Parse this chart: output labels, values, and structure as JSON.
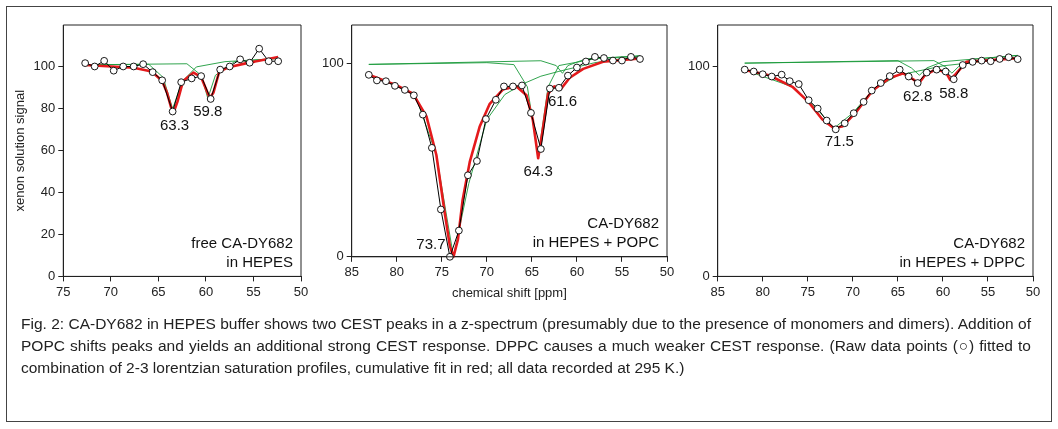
{
  "chart_data": [
    {
      "type": "line",
      "ylabel": "xenon solution signal",
      "xlim": [
        75,
        50
      ],
      "xticks": [
        75,
        70,
        65,
        60,
        55,
        50
      ],
      "ylim": [
        0,
        120
      ],
      "yticks": [
        0,
        20,
        40,
        60,
        80,
        100
      ],
      "series": [
        {
          "color": "#000000",
          "marker": "circle",
          "x": [
            72.7,
            71.7,
            70.7,
            69.7,
            68.7,
            67.6,
            66.6,
            65.6,
            64.6,
            63.5,
            62.6,
            61.5,
            60.5,
            59.5,
            58.5,
            57.5,
            56.4,
            55.4,
            54.4,
            53.4,
            52.4
          ],
          "values": [
            101.8,
            100.2,
            102.9,
            98.2,
            100.2,
            100.2,
            101.3,
            97.5,
            93.6,
            78.7,
            92.7,
            94.5,
            95.6,
            84.7,
            98.7,
            100.2,
            103.6,
            102,
            108.7,
            102.7,
            102.7
          ]
        },
        {
          "color": "#e41a1c",
          "marker": "none",
          "x": [
            72.7,
            67.6,
            65.7,
            64.6,
            64.1,
            63.6,
            63.4,
            63,
            62.4,
            61.3,
            60.5,
            60,
            59.6,
            59.2,
            58.6,
            57.5,
            55.7,
            52.4
          ],
          "values": [
            100.9,
            99.6,
            97.8,
            93.3,
            87.8,
            79.6,
            78.2,
            83.3,
            93.3,
            97.3,
            95.1,
            89.6,
            85.1,
            87.8,
            97.8,
            100,
            101.8,
            104.7
          ]
        },
        {
          "color": "#1a9a3a",
          "marker": "none",
          "x": [
            72.7,
            66,
            64.5,
            63.5,
            62.5,
            61,
            58,
            52.5
          ],
          "values": [
            101,
            101.2,
            95,
            80,
            93,
            100,
            102.5,
            104
          ]
        },
        {
          "color": "#1a9a3a",
          "marker": "none",
          "x": [
            72.7,
            62,
            60.5,
            59.8,
            59,
            57,
            52.5
          ],
          "values": [
            101,
            101.5,
            96,
            85,
            96,
            102.5,
            104
          ]
        }
      ],
      "annotations": [
        {
          "text": "63.3",
          "x": 63.3,
          "y": 78.2
        },
        {
          "text": "59.8",
          "x": 59.8,
          "y": 85.1
        },
        "free CA-DY682\nin HEPES"
      ]
    },
    {
      "type": "line",
      "xlabel": "chemical shift [ppm]",
      "xlim": [
        85,
        50
      ],
      "xticks": [
        85,
        80,
        75,
        70,
        65,
        60,
        55,
        50
      ],
      "ylim": [
        0,
        120
      ],
      "yticks": [
        0,
        100
      ],
      "series": [
        {
          "color": "#000000",
          "marker": "circle",
          "x": [
            83.1,
            82.2,
            81.2,
            80.2,
            79.1,
            78.1,
            77.1,
            76.1,
            75.1,
            74.1,
            73.1,
            72.1,
            71.1,
            70.1,
            69,
            68.1,
            67.1,
            66.1,
            65.1,
            64,
            63,
            62,
            61,
            60,
            59,
            58,
            57,
            56,
            55,
            54,
            53
          ],
          "values": [
            94.2,
            91.3,
            90.9,
            88.5,
            86.4,
            83.6,
            73.6,
            56.4,
            24.5,
            0,
            13.6,
            42.2,
            49.6,
            71.3,
            81.3,
            88.2,
            88.2,
            88.7,
            74.5,
            55.8,
            87.1,
            87.5,
            93.8,
            98,
            101.1,
            103.5,
            102.9,
            101.6,
            101.6,
            103.5,
            102.4
          ]
        },
        {
          "color": "#e41a1c",
          "marker": "none",
          "x": [
            83.1,
            80.1,
            78.2,
            76.7,
            75.6,
            74.7,
            74.1,
            73.7,
            73.2,
            72.7,
            71.9,
            70.8,
            69.7,
            68.2,
            66.7,
            65.6,
            64.9,
            64.3,
            63.8,
            63.2,
            62.5,
            61.7,
            60.8,
            59.3,
            57.1,
            53
          ],
          "values": [
            94.2,
            89,
            84.5,
            72.7,
            52.7,
            23.6,
            5.5,
            0,
            9.1,
            29,
            49,
            67.3,
            79,
            86.7,
            88.2,
            83.6,
            71,
            51,
            65.5,
            84.5,
            88.2,
            87.3,
            92.7,
            97.3,
            101,
            102.7
          ]
        },
        {
          "color": "#1a9a3a",
          "marker": "none",
          "x": [
            83.1,
            78,
            75.6,
            73.7,
            72,
            70,
            68,
            66,
            64,
            62,
            58,
            53
          ],
          "values": [
            94,
            84.5,
            52.7,
            0,
            38,
            71,
            84,
            89.5,
            93.5,
            96,
            100.5,
            104
          ]
        },
        {
          "color": "#1a9a3a",
          "marker": "none",
          "x": [
            83.1,
            70,
            67,
            65.5,
            64.3,
            63.2,
            62,
            58,
            53
          ],
          "values": [
            99.6,
            100.5,
            99.5,
            88,
            52,
            88,
            99,
            102.5,
            104
          ]
        },
        {
          "color": "#1a9a3a",
          "marker": "none",
          "x": [
            83.1,
            64,
            62.3,
            61.6,
            61,
            59,
            53
          ],
          "values": [
            99.6,
            101.5,
            99,
            95,
            99,
            102.5,
            104
          ]
        }
      ],
      "annotations": [
        {
          "text": "73.7",
          "x": 73.7,
          "y": 0
        },
        {
          "text": "64.3",
          "x": 64.3,
          "y": 51
        },
        {
          "text": "61.6",
          "x": 61.6,
          "y": 87.3
        },
        "CA-DY682\nin HEPES + POPC"
      ]
    },
    {
      "type": "line",
      "xlim": [
        85,
        50
      ],
      "xticks": [
        85,
        80,
        75,
        70,
        65,
        60,
        55,
        50
      ],
      "ylim": [
        0,
        120
      ],
      "yticks": [
        0,
        100
      ],
      "series": [
        {
          "color": "#000000",
          "marker": "circle",
          "x": [
            82,
            81,
            80,
            79,
            77.9,
            77,
            76,
            74.9,
            73.9,
            72.9,
            71.9,
            70.9,
            69.9,
            68.8,
            67.9,
            66.9,
            65.9,
            64.8,
            63.8,
            62.8,
            61.8,
            60.7,
            59.7,
            58.8,
            57.8,
            56.7,
            55.7,
            54.7,
            53.7,
            52.7,
            51.7
          ],
          "values": [
            98.7,
            97.8,
            96.5,
            95.4,
            96.3,
            93.2,
            91.8,
            84.1,
            80.1,
            74.4,
            70.2,
            73.1,
            77.9,
            83.3,
            88.7,
            92.3,
            95.6,
            98.7,
            95.4,
            92.3,
            97.3,
            98.7,
            97.8,
            94.1,
            100.9,
            102.4,
            103,
            102.7,
            103.8,
            104.6,
            103.7
          ]
        },
        {
          "color": "#e41a1c",
          "marker": "none",
          "x": [
            82,
            79.3,
            76.7,
            74.9,
            73.4,
            72.1,
            71.1,
            69.6,
            67.8,
            65.9,
            64.4,
            63.3,
            62.7,
            62,
            60.7,
            59.6,
            59.2,
            58.7,
            57.4,
            51.7
          ],
          "values": [
            98.5,
            96,
            90.5,
            83.2,
            75,
            70.7,
            71.7,
            78.6,
            88.7,
            94.7,
            96.9,
            94.1,
            92,
            96,
            99.1,
            96.9,
            93.8,
            96,
            102.4,
            104.2
          ]
        },
        {
          "color": "#1a9a3a",
          "marker": "none",
          "x": [
            82,
            76.7,
            74,
            72.1,
            70,
            67.8,
            65,
            60,
            51.7
          ],
          "values": [
            98.5,
            90.5,
            80,
            70.7,
            78,
            89,
            96,
            100.5,
            104.5
          ]
        },
        {
          "color": "#1a9a3a",
          "marker": "none",
          "x": [
            82,
            65,
            63.5,
            62.6,
            61.8,
            60,
            51.7
          ],
          "values": [
            101.8,
            103,
            99.5,
            96,
            99.5,
            102.5,
            105.5
          ]
        },
        {
          "color": "#1a9a3a",
          "marker": "none",
          "x": [
            82,
            61,
            59.7,
            59,
            58.3,
            57,
            51.7
          ],
          "values": [
            101.8,
            103,
            100,
            97,
            100,
            103.5,
            105.5
          ]
        }
      ],
      "annotations": [
        {
          "text": "71.5",
          "x": 71.5,
          "y": 70.7
        },
        {
          "text": "62.8",
          "x": 62.8,
          "y": 92
        },
        {
          "text": "58.8",
          "x": 58.8,
          "y": 93.8
        },
        "CA-DY682\nin HEPES + DPPC"
      ]
    },
    {
      "type": "other",
      "annotations": [
        "Fig. 2: CA-DY682 in HEPES buffer shows two CEST peaks in a z-spectrum (presumably due to the presence of monomers and dimers). Addition of POPC shifts peaks and yields an additional strong CEST response. DPPC causes a much weaker CEST response. (Raw data points (○) fitted to combination of 2-3 lorentzian saturation profiles, cumulative fit in red; all data recorded at 295 K.)"
      ]
    }
  ]
}
